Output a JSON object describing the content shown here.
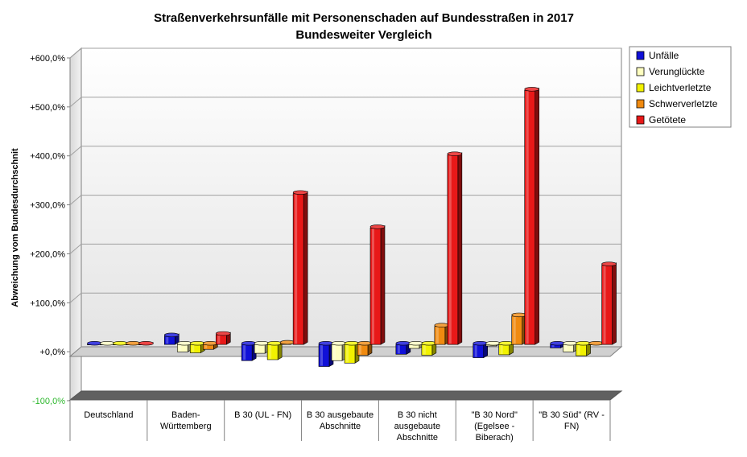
{
  "chart_data": {
    "type": "bar",
    "title": "Straßenverkehrsunfälle mit Personenschaden auf Bundesstraßen in 2017",
    "subtitle": "Bundesweiter Vergleich",
    "xlabel": "",
    "ylabel": "Abweichung vom Bundesdurchschnit",
    "ylim": [
      -100,
      600
    ],
    "yticks": [
      -100,
      0,
      100,
      200,
      300,
      400,
      500,
      600
    ],
    "ytick_labels": [
      "-100,0%",
      "+0,0%",
      "+100,0%",
      "+200,0%",
      "+300,0%",
      "+400,0%",
      "+500,0%",
      "+600,0%"
    ],
    "grid": true,
    "legend_position": "right",
    "categories": [
      [
        "Deutschland"
      ],
      [
        "Baden-",
        "Württemberg"
      ],
      [
        "B 30 (UL - FN)"
      ],
      [
        "B 30 ausgebaute",
        "Abschnitte"
      ],
      [
        "B 30 nicht",
        "ausgebaute",
        "Abschnitte"
      ],
      [
        "\"B 30 Nord\"",
        "(Egelsee -",
        "Biberach)"
      ],
      [
        "\"B 30 Süd\" (RV -",
        "FN)"
      ]
    ],
    "series": [
      {
        "name": "Unfälle",
        "color": "#1010d8",
        "values": [
          0,
          17,
          -33,
          -45,
          -20,
          -27,
          -7
        ]
      },
      {
        "name": "Verunglückte",
        "color": "#ffffc0",
        "values": [
          0,
          -15,
          -18,
          -33,
          -8,
          -3,
          -15
        ]
      },
      {
        "name": "Leichtverletzte",
        "color": "#f2f200",
        "values": [
          0,
          -17,
          -31,
          -38,
          -22,
          -21,
          -23
        ]
      },
      {
        "name": "Schwerverletzte",
        "color": "#f08a10",
        "values": [
          0,
          -10,
          2,
          -22,
          37,
          58,
          0
        ]
      },
      {
        "name": "Getötete",
        "color": "#e81818",
        "values": [
          0,
          20,
          308,
          238,
          387,
          519,
          162
        ]
      }
    ]
  }
}
